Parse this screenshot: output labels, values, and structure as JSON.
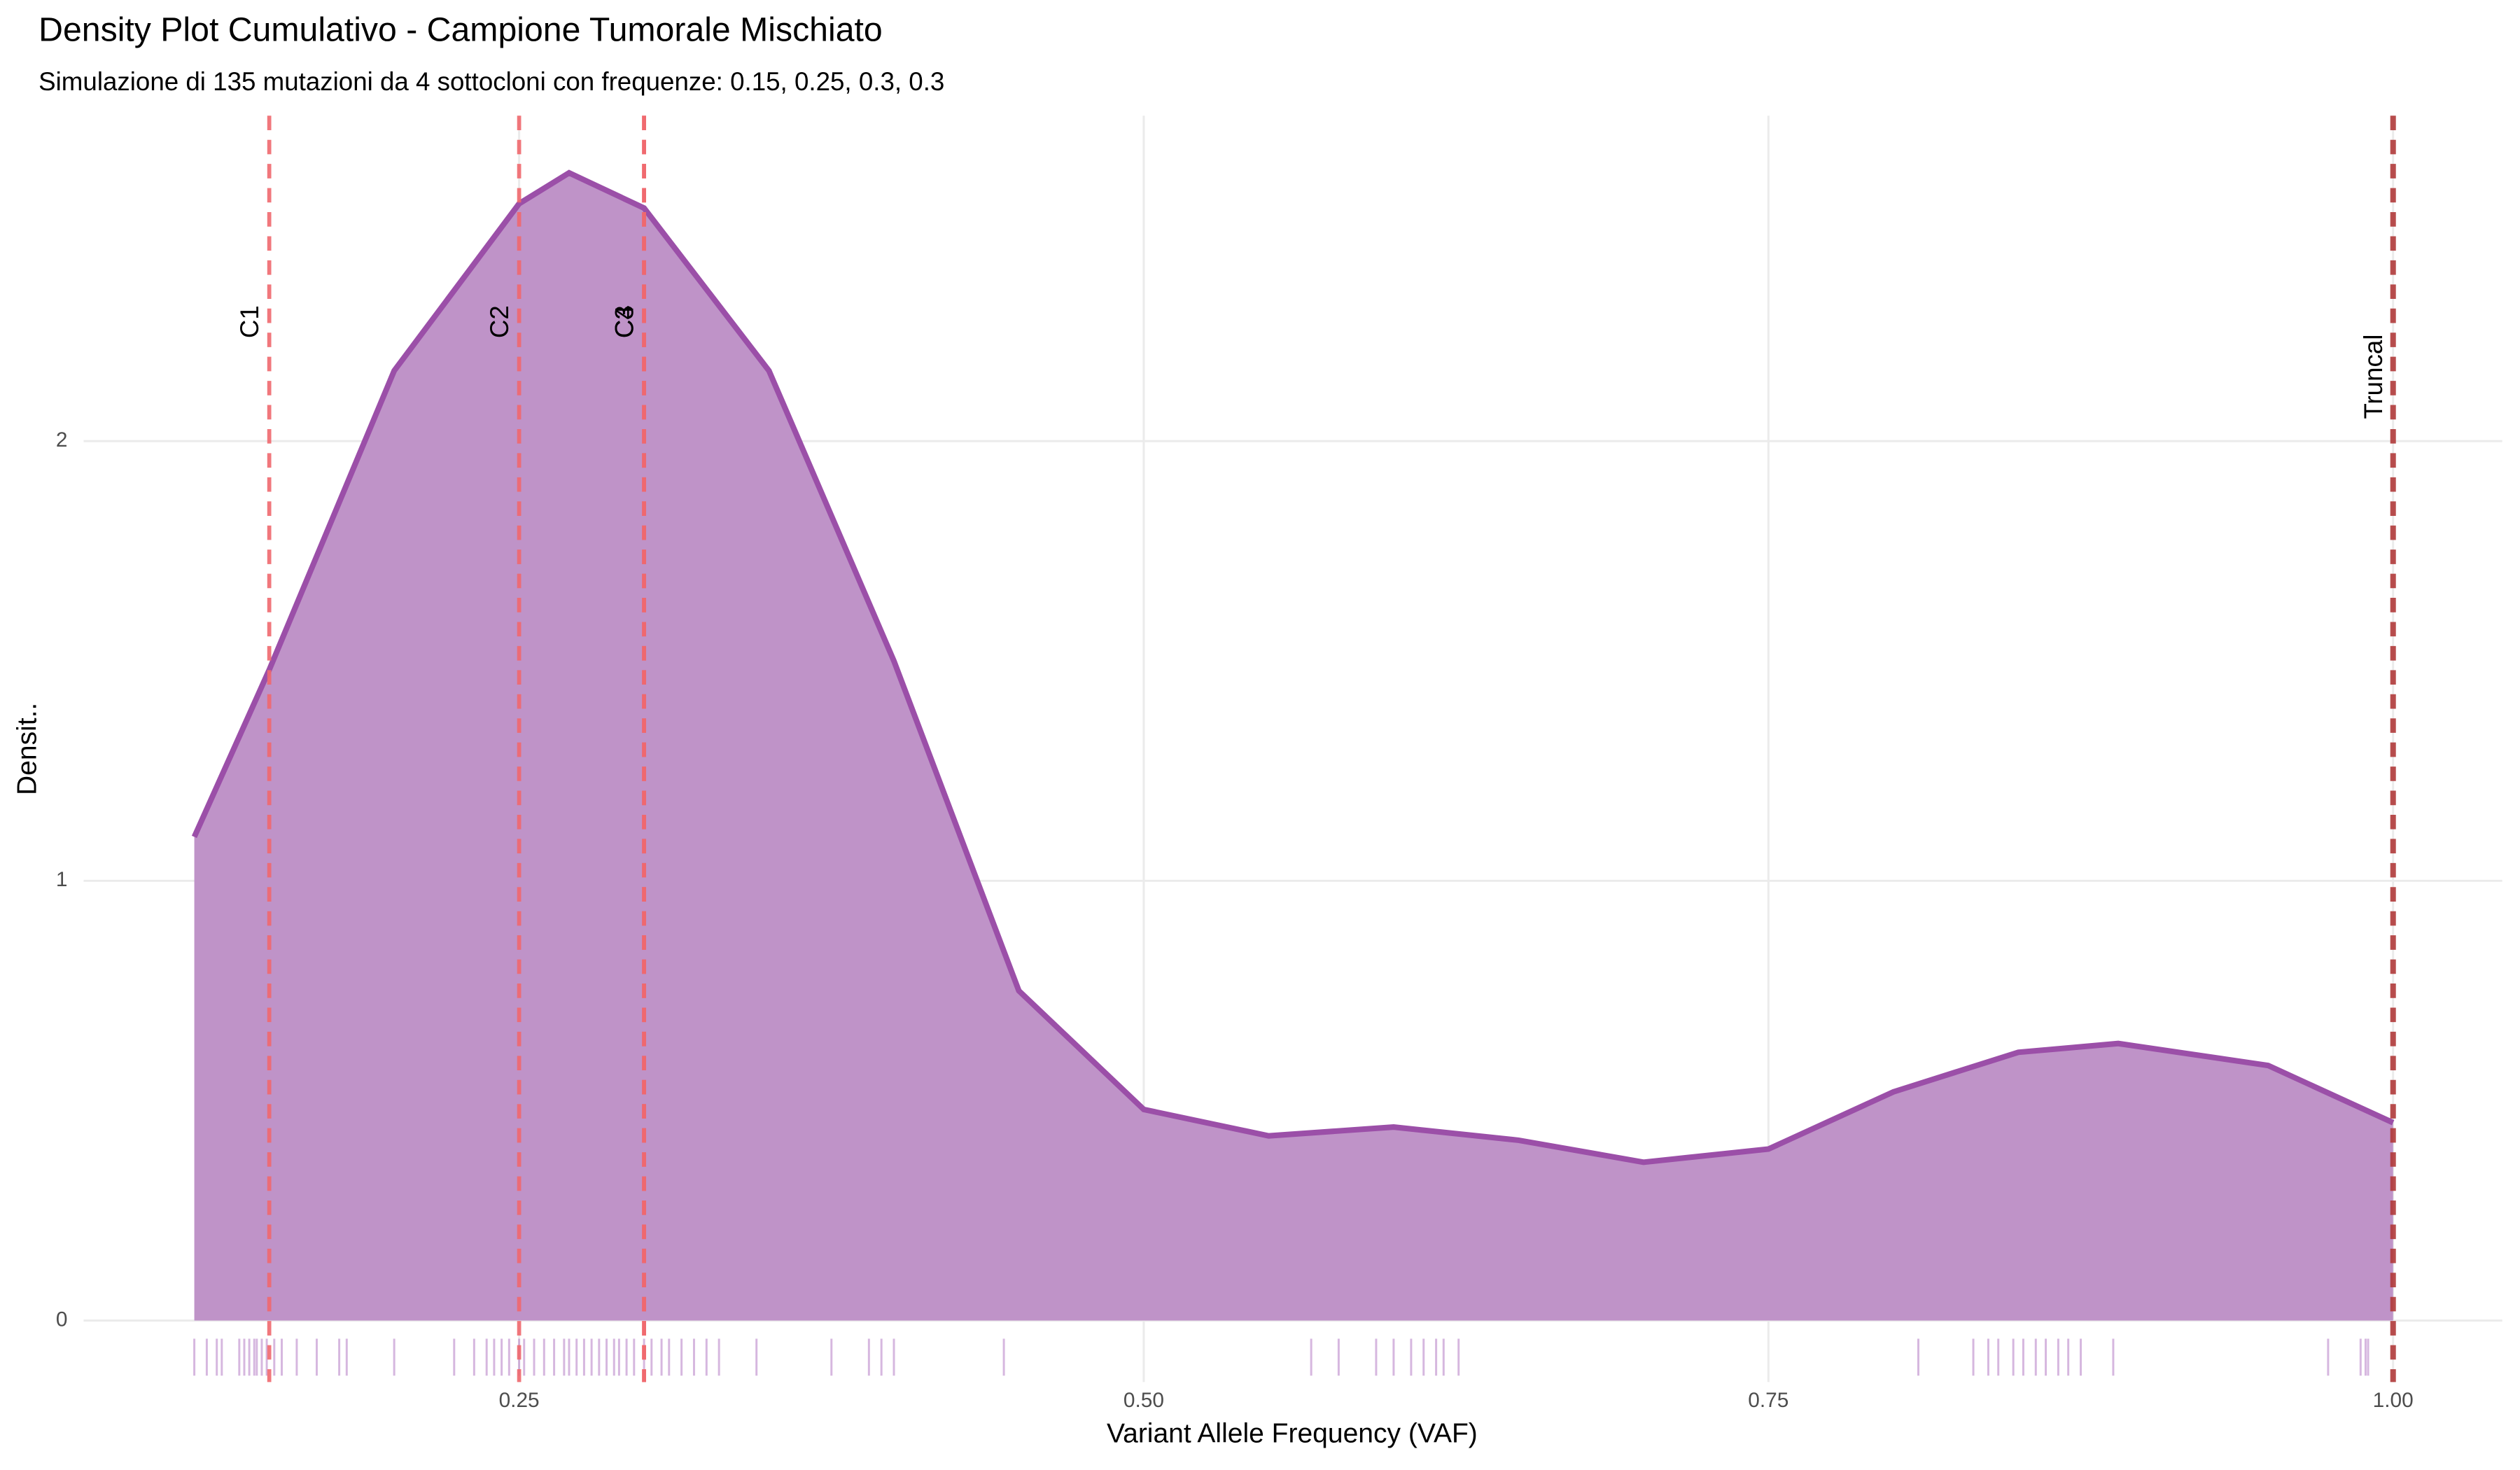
{
  "chart_data": {
    "type": "density",
    "title": "Density Plot Cumulativo - Campione Tumorale Mischiato",
    "subtitle": "Simulazione di 135 mutazioni da 4 sottocloni con frequenze: 0.15, 0.25, 0.3, 0.3",
    "x_label": "Variant Allele Frequency (VAF)",
    "y_label": "Densit..",
    "x": [
      0.12,
      0.15,
      0.2,
      0.25,
      0.27,
      0.3,
      0.35,
      0.4,
      0.45,
      0.5,
      0.55,
      0.6,
      0.65,
      0.7,
      0.75,
      0.8,
      0.85,
      0.89,
      0.95,
      1.0
    ],
    "values": [
      1.1,
      1.48,
      2.16,
      2.54,
      2.61,
      2.53,
      2.16,
      1.5,
      0.75,
      0.48,
      0.42,
      0.44,
      0.41,
      0.36,
      0.39,
      0.52,
      0.61,
      0.63,
      0.58,
      0.45
    ],
    "color": "#9b4fa8",
    "fill": "#bf93c8",
    "rug": [
      0.12,
      0.125,
      0.129,
      0.131,
      0.138,
      0.14,
      0.142,
      0.144,
      0.145,
      0.147,
      0.149,
      0.152,
      0.155,
      0.161,
      0.169,
      0.178,
      0.181,
      0.2,
      0.224,
      0.232,
      0.237,
      0.24,
      0.243,
      0.246,
      0.25,
      0.252,
      0.256,
      0.26,
      0.264,
      0.268,
      0.27,
      0.273,
      0.276,
      0.279,
      0.282,
      0.285,
      0.288,
      0.29,
      0.293,
      0.296,
      0.3,
      0.303,
      0.307,
      0.31,
      0.315,
      0.32,
      0.325,
      0.33,
      0.345,
      0.375,
      0.39,
      0.395,
      0.4,
      0.444,
      0.567,
      0.578,
      0.593,
      0.6,
      0.607,
      0.612,
      0.617,
      0.62,
      0.626,
      0.81,
      0.832,
      0.838,
      0.842,
      0.848,
      0.852,
      0.857,
      0.861,
      0.866,
      0.87,
      0.875,
      0.888,
      0.974,
      0.987,
      0.989,
      0.99
    ],
    "rug_color": "#b57bc4",
    "vlines": [
      {
        "name": "C1",
        "value": 0.15,
        "color": "#f0686e"
      },
      {
        "name": "C2",
        "value": 0.25,
        "color": "#f0686e"
      },
      {
        "name": "C3",
        "value": 0.3,
        "color": "#f0686e"
      },
      {
        "name": "C4",
        "value": 0.3,
        "color": "#f0686e"
      },
      {
        "name": "Truncal",
        "value": 1.0,
        "color": "#b03a3a"
      }
    ],
    "label_color": "#e3001b",
    "xlim": [
      0.0757,
      1.0437
    ],
    "ylim": [
      -0.14,
      2.74
    ],
    "xticks": [
      {
        "value": 0.25,
        "label": "0.25"
      },
      {
        "value": 0.5,
        "label": "0.50"
      },
      {
        "value": 0.75,
        "label": "0.75"
      },
      {
        "value": 1.0,
        "label": "1.00"
      }
    ],
    "yticks": [
      0,
      1,
      2
    ],
    "grid": true
  }
}
